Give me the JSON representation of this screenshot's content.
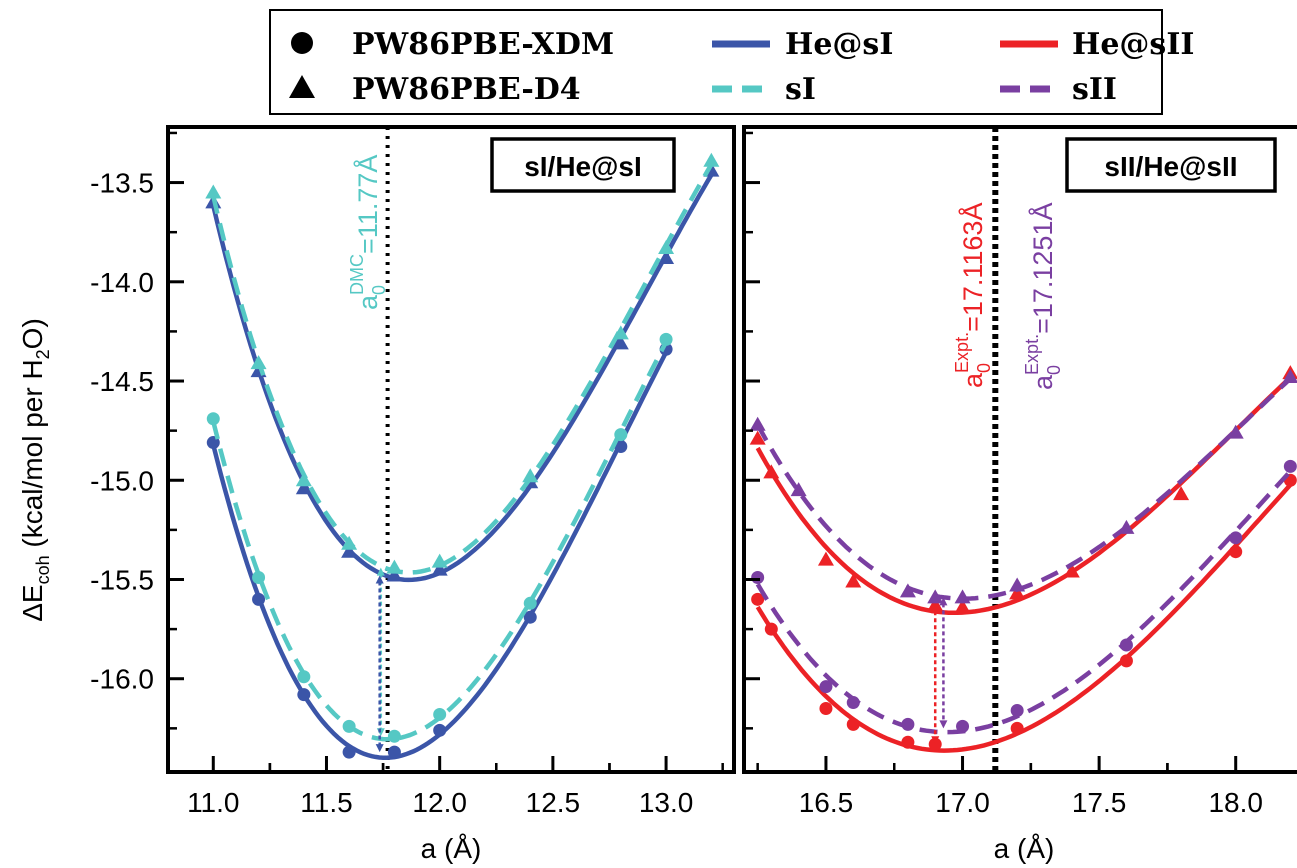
{
  "legend": {
    "markers": [
      {
        "marker": "circle",
        "label": "PW86PBE-XDM"
      },
      {
        "marker": "triangle",
        "label": "PW86PBE-D4"
      }
    ],
    "lines": [
      {
        "style": "solid",
        "color": "#3b55a8",
        "label": "He@sI"
      },
      {
        "style": "dashed",
        "color": "#55c8c4",
        "label": "sI"
      },
      {
        "style": "solid",
        "color": "#ec2226",
        "label": "He@sII"
      },
      {
        "style": "dashed",
        "color": "#7a3fa1",
        "label": "sII"
      }
    ]
  },
  "y_axis": {
    "label_main": "ΔE",
    "label_sub": "coh",
    "label_rest": " (kcal/mol per H",
    "label_sub2": "2",
    "label_end": "O)"
  },
  "chart_data": [
    {
      "type": "line",
      "panel_label": "sI/He@sI",
      "xlabel": "a (Å)",
      "xlim": [
        10.8,
        13.3
      ],
      "ylim": [
        -16.47,
        -13.22
      ],
      "xticks": [
        "11.0",
        "11.5",
        "12.0",
        "12.5",
        "13.0"
      ],
      "yticks": [
        "-13.5",
        "-14.0",
        "-14.5",
        "-15.0",
        "-15.5",
        "-16.0"
      ],
      "vline": {
        "x": 11.77,
        "style": "dotted",
        "color": "#000000"
      },
      "vline_annotation": {
        "main": "a",
        "sub": "0",
        "sup": "DMC",
        "value": "=11.77Å",
        "color": "#55c8c4"
      },
      "series": [
        {
          "name": "He@sI",
          "method": "PW86PBE-D4",
          "marker": "triangle",
          "style": "solid",
          "color": "#3b55a8",
          "x": [
            11.0,
            11.2,
            11.4,
            11.6,
            11.8,
            12.0,
            12.4,
            12.8,
            13.0,
            13.2
          ],
          "y": [
            -13.6,
            -14.45,
            -15.04,
            -15.36,
            -15.48,
            -15.45,
            -15.01,
            -14.31,
            -13.88,
            -13.44
          ]
        },
        {
          "name": "sI",
          "method": "PW86PBE-D4",
          "marker": "triangle",
          "style": "dashed",
          "color": "#55c8c4",
          "x": [
            11.0,
            11.2,
            11.4,
            11.6,
            11.8,
            12.0,
            12.4,
            12.8,
            13.0,
            13.2
          ],
          "y": [
            -13.55,
            -14.41,
            -15.0,
            -15.32,
            -15.44,
            -15.41,
            -14.98,
            -14.26,
            -13.83,
            -13.39
          ]
        },
        {
          "name": "He@sI",
          "method": "PW86PBE-XDM",
          "marker": "circle",
          "style": "solid",
          "color": "#3b55a8",
          "x": [
            11.0,
            11.2,
            11.4,
            11.6,
            11.8,
            12.0,
            12.4,
            12.8,
            13.0
          ],
          "y": [
            -14.81,
            -15.6,
            -16.08,
            -16.37,
            -16.37,
            -16.26,
            -15.69,
            -14.83,
            -14.34
          ]
        },
        {
          "name": "sI",
          "method": "PW86PBE-XDM",
          "marker": "circle",
          "style": "dashed",
          "color": "#55c8c4",
          "x": [
            11.0,
            11.2,
            11.4,
            11.6,
            11.8,
            12.0,
            12.4,
            12.8,
            13.0
          ],
          "y": [
            -14.69,
            -15.49,
            -15.99,
            -16.24,
            -16.29,
            -16.18,
            -15.62,
            -14.77,
            -14.29
          ]
        }
      ],
      "arrows": [
        {
          "x": 11.74,
          "y_from": -15.44,
          "y_to": -16.29,
          "color": "#55c8c4"
        },
        {
          "x": 11.735,
          "y_from": -15.48,
          "y_to": -16.37,
          "color": "#3b55a8"
        }
      ]
    },
    {
      "type": "line",
      "panel_label": "sII/He@sII",
      "xlabel": "a (Å)",
      "xlim": [
        16.2,
        18.25
      ],
      "ylim": [
        -16.47,
        -13.22
      ],
      "xticks": [
        "16.5",
        "17.0",
        "17.5",
        "18.0"
      ],
      "vline": {
        "x": 17.12,
        "style": "dotted",
        "color": "#000000"
      },
      "vline_annotations": [
        {
          "main": "a",
          "sub": "0",
          "sup": "Expt.",
          "value": "=17.1163Å",
          "color": "#ec2226"
        },
        {
          "main": "a",
          "sub": "0",
          "sup": "Expt.",
          "value": "=17.1251Å",
          "color": "#7a3fa1"
        }
      ],
      "series": [
        {
          "name": "He@sII",
          "method": "PW86PBE-D4",
          "marker": "triangle",
          "style": "solid",
          "color": "#ec2226",
          "x": [
            16.25,
            16.3,
            16.5,
            16.6,
            16.9,
            17.0,
            17.2,
            17.4,
            17.8,
            18.2
          ],
          "y": [
            -14.79,
            -14.96,
            -15.4,
            -15.51,
            -15.63,
            -15.64,
            -15.57,
            -15.46,
            -15.07,
            -14.46
          ]
        },
        {
          "name": "sII",
          "method": "PW86PBE-D4",
          "marker": "triangle",
          "style": "dashed",
          "color": "#7a3fa1",
          "x": [
            16.25,
            16.4,
            16.8,
            16.9,
            17.0,
            17.2,
            17.6,
            18.0,
            18.2
          ],
          "y": [
            -14.72,
            -15.05,
            -15.56,
            -15.59,
            -15.59,
            -15.53,
            -15.24,
            -14.76,
            -14.48
          ]
        },
        {
          "name": "He@sII",
          "method": "PW86PBE-XDM",
          "marker": "circle",
          "style": "solid",
          "color": "#ec2226",
          "x": [
            16.25,
            16.3,
            16.5,
            16.6,
            16.8,
            16.9,
            17.2,
            17.6,
            18.0,
            18.2
          ],
          "y": [
            -15.6,
            -15.75,
            -16.15,
            -16.23,
            -16.32,
            -16.33,
            -16.25,
            -15.91,
            -15.36,
            -15.0
          ]
        },
        {
          "name": "sII",
          "method": "PW86PBE-XDM",
          "marker": "circle",
          "style": "dashed",
          "color": "#7a3fa1",
          "x": [
            16.25,
            16.5,
            16.6,
            16.8,
            17.0,
            17.2,
            17.6,
            18.0,
            18.2
          ],
          "y": [
            -15.49,
            -16.04,
            -16.12,
            -16.23,
            -16.24,
            -16.16,
            -15.83,
            -15.29,
            -14.93
          ]
        }
      ],
      "arrows": [
        {
          "x": 16.9,
          "y_from": -15.63,
          "y_to": -16.33,
          "color": "#ec2226"
        },
        {
          "x": 16.93,
          "y_from": -15.59,
          "y_to": -16.25,
          "color": "#7a3fa1"
        }
      ]
    }
  ]
}
